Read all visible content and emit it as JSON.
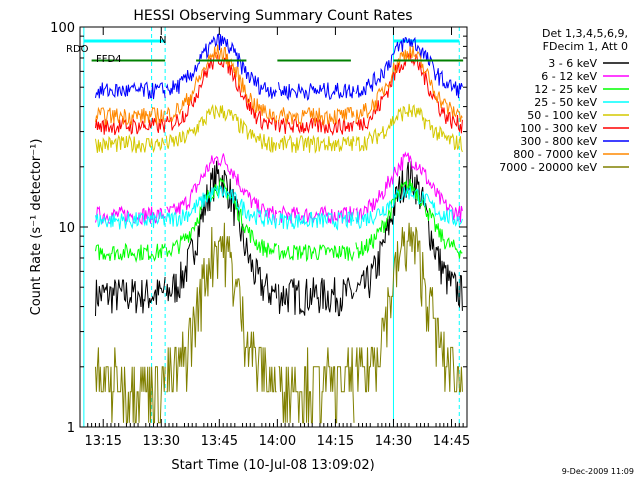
{
  "chart_data": {
    "type": "line",
    "title": "HESSI Observing Summary Count Rates",
    "xlabel": "Start Time (10-Jul-08 13:09:02)",
    "ylabel": "Count Rate (s⁻¹ detector⁻¹)",
    "y_scale": "log",
    "ylim": [
      1,
      100
    ],
    "xlim_minutes": [
      0,
      100
    ],
    "x_ticks": [
      {
        "t": 6,
        "label": "13:15"
      },
      {
        "t": 21,
        "label": "13:30"
      },
      {
        "t": 36,
        "label": "13:45"
      },
      {
        "t": 51,
        "label": "14:00"
      },
      {
        "t": 66,
        "label": "14:15"
      },
      {
        "t": 81,
        "label": "14:30"
      },
      {
        "t": 96,
        "label": "14:45"
      }
    ],
    "y_ticks": [
      {
        "v": 1,
        "label": "1"
      },
      {
        "v": 10,
        "label": "10"
      },
      {
        "v": 100,
        "label": "100"
      }
    ],
    "legend": {
      "placement": "right",
      "header_lines": [
        "Det 1,3,4,5,6,9,",
        "FDecim 1, Att 0"
      ]
    },
    "series": [
      {
        "name": "3 - 6 keV",
        "color": "#000000",
        "baseline": 4.6,
        "peak": 18
      },
      {
        "name": "6 - 12 keV",
        "color": "#ff00ff",
        "baseline": 11.5,
        "peak": 22
      },
      {
        "name": "12 - 25 keV",
        "color": "#00ff00",
        "baseline": 7.5,
        "peak": 16
      },
      {
        "name": "25 - 50 keV",
        "color": "#00ffff",
        "baseline": 10.8,
        "peak": 15
      },
      {
        "name": "50 - 100 keV",
        "color": "#d4c800",
        "baseline": 26,
        "peak": 38
      },
      {
        "name": "100 - 300 keV",
        "color": "#ff0000",
        "baseline": 32,
        "peak": 70
      },
      {
        "name": "300 - 800 keV",
        "color": "#0000ff",
        "baseline": 48,
        "peak": 85
      },
      {
        "name": "800 - 7000 keV",
        "color": "#ff8800",
        "baseline": 36,
        "peak": 75
      },
      {
        "name": "7000 - 20000 keV",
        "color": "#808000",
        "baseline": 1.7,
        "peak": 8.5
      }
    ],
    "attenuator_levels": {
      "segments": [
        [
          3,
          22
        ],
        [
          30,
          43
        ],
        [
          51,
          70
        ],
        [
          81,
          99
        ]
      ],
      "value": 68,
      "color": "#008000"
    },
    "saa_intervals": [
      [
        1,
        22
      ],
      [
        81,
        98
      ]
    ],
    "annotations": [
      "RDO",
      "FFD4",
      "N"
    ],
    "footer_date": "9-Dec-2009 11:09"
  }
}
